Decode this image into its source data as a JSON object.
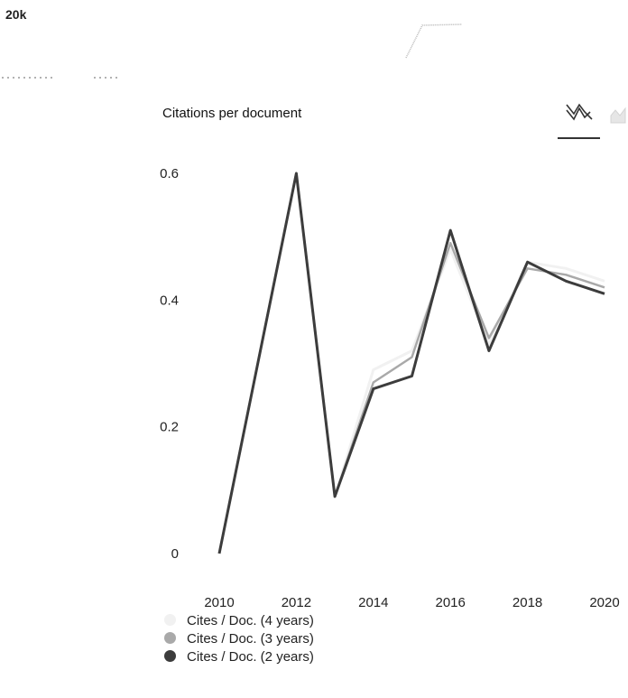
{
  "header": {
    "top_value_label": "20k"
  },
  "chart_data": {
    "type": "line",
    "title": "Citations per document",
    "xlabel": "",
    "ylabel": "",
    "x": [
      2010,
      2011,
      2012,
      2013,
      2014,
      2015,
      2016,
      2017,
      2018,
      2019,
      2020
    ],
    "xticks": [
      "2010",
      "2012",
      "2014",
      "2016",
      "2018",
      "2020"
    ],
    "yticks": [
      "0",
      "0.2",
      "0.4",
      "0.6"
    ],
    "ylim": [
      0,
      0.6
    ],
    "grid": false,
    "legend_position": "bottom-left",
    "series": [
      {
        "name": "Cites / Doc. (4 years)",
        "color": "#f1f1f1",
        "values": [
          0.0,
          0.3,
          0.6,
          0.09,
          0.29,
          0.32,
          0.48,
          0.33,
          0.46,
          0.45,
          0.43
        ]
      },
      {
        "name": "Cites / Doc. (3 years)",
        "color": "#a9a9a9",
        "values": [
          0.0,
          0.3,
          0.6,
          0.09,
          0.27,
          0.31,
          0.49,
          0.34,
          0.45,
          0.44,
          0.42
        ]
      },
      {
        "name": "Cites / Doc. (2 years)",
        "color": "#3c3c3c",
        "values": [
          0.0,
          0.3,
          0.6,
          0.09,
          0.26,
          0.28,
          0.51,
          0.32,
          0.46,
          0.43,
          0.41
        ]
      }
    ]
  },
  "toolbar": {
    "line_icon": "line-chart-icon",
    "area_icon": "area-chart-icon"
  }
}
